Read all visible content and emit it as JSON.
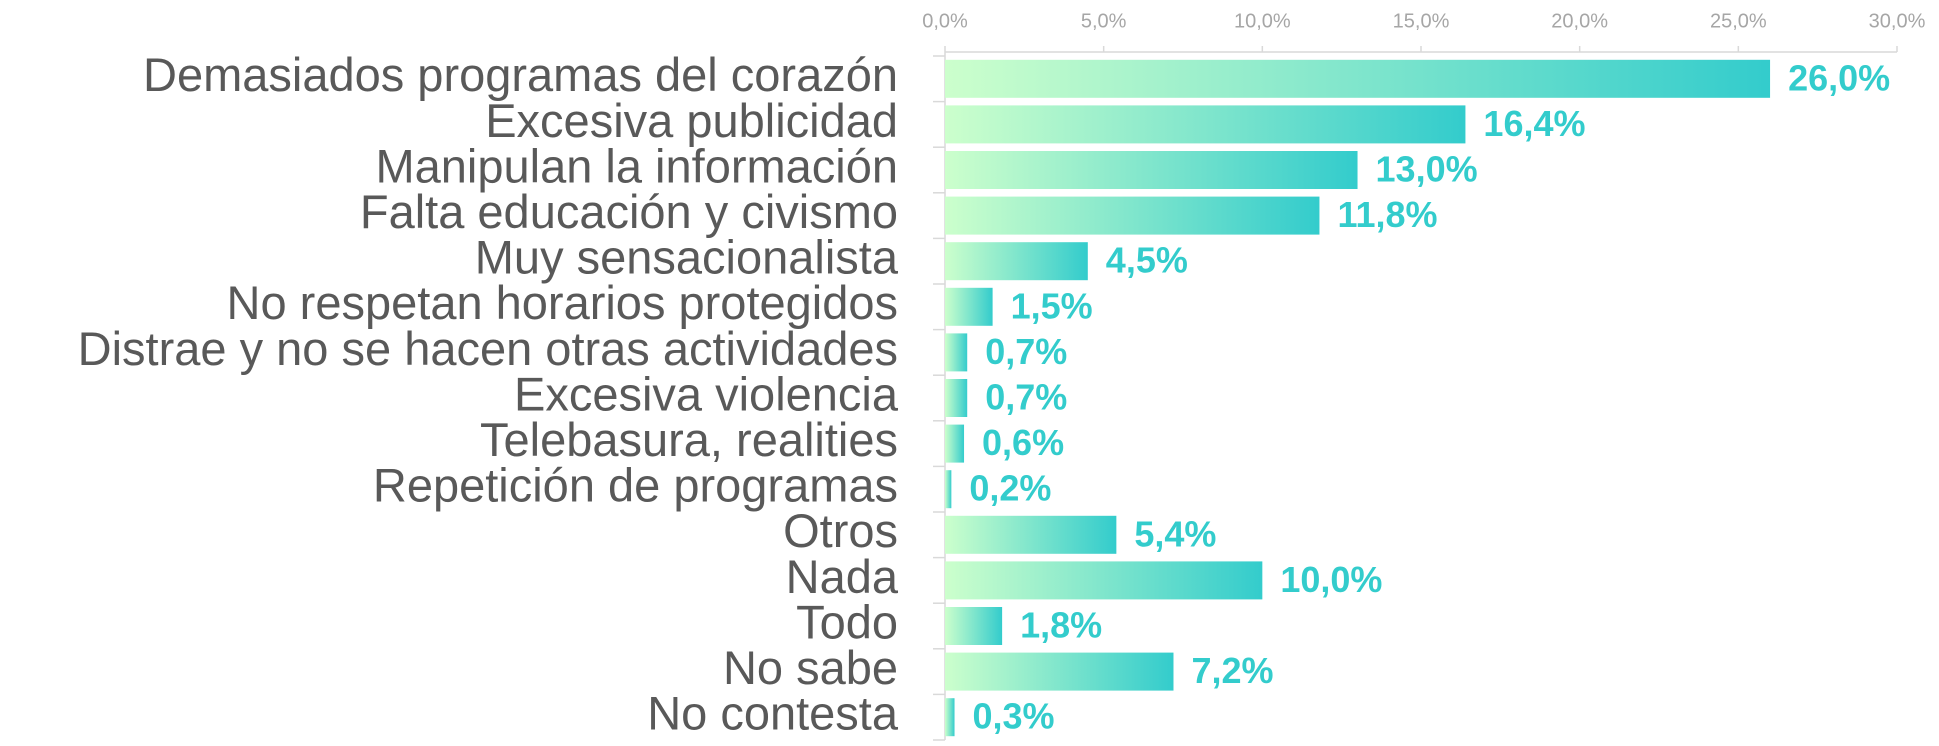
{
  "chart_data": {
    "type": "bar",
    "orientation": "horizontal",
    "categories": [
      "Demasiados programas del corazón",
      "Excesiva publicidad",
      "Manipulan la información",
      "Falta educación y civismo",
      "Muy sensacionalista",
      "No respetan horarios protegidos",
      "Distrae y no se hacen otras actividades",
      "Excesiva violencia",
      "Telebasura, realities",
      "Repetición de programas",
      "Otros ",
      "Nada",
      "Todo",
      "No sabe",
      "No contesta"
    ],
    "values": [
      26.0,
      16.4,
      13.0,
      11.8,
      4.5,
      1.5,
      0.7,
      0.7,
      0.6,
      0.2,
      5.4,
      10.0,
      1.8,
      7.2,
      0.3
    ],
    "value_labels": [
      "26,0%",
      "16,4%",
      "13,0%",
      "11,8%",
      "4,5%",
      "1,5%",
      "0,7%",
      "0,7%",
      "0,6%",
      "0,2%",
      "5,4%",
      "10,0%",
      "1,8%",
      "7,2%",
      "0,3%"
    ],
    "color": [
      "#ccffcc",
      "#33cccc"
    ],
    "xlim": [
      0,
      30
    ],
    "xticks": [
      {
        "value": 0,
        "label": "0,0%"
      },
      {
        "value": 5,
        "label": "5,0%"
      },
      {
        "value": 10,
        "label": "10,0%"
      },
      {
        "value": 15,
        "label": "15,0%"
      },
      {
        "value": 20,
        "label": "20,0%"
      },
      {
        "value": 25,
        "label": "25,0%"
      },
      {
        "value": 30,
        "label": "30,0%"
      }
    ]
  }
}
